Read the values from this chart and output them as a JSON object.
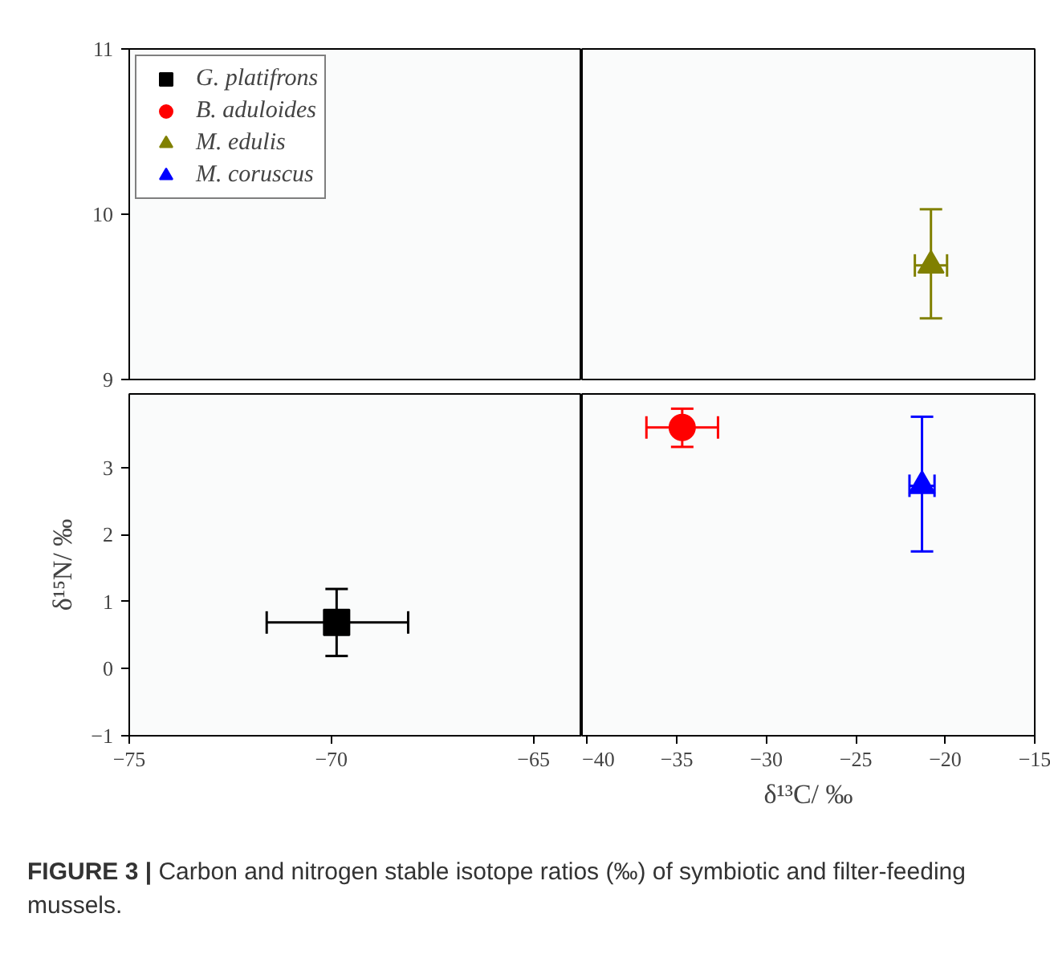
{
  "chart_data": [
    {
      "type": "scatter",
      "xlim": [
        -75,
        -63.8
      ],
      "xticks": [
        -75,
        -70,
        -65
      ],
      "ylim": [
        9,
        11
      ],
      "yticks": [
        9,
        10,
        11
      ],
      "tick_labels": "y",
      "grid": false,
      "legend": "top left",
      "series": [
        {
          "name": "G. platifrons",
          "color": "#000000",
          "marker": "square",
          "x": [
            null
          ],
          "values": [
            null
          ]
        },
        {
          "name": "B. aduloides",
          "color": "#ff0000",
          "marker": "circle",
          "x": [
            null
          ],
          "values": [
            null
          ]
        },
        {
          "name": "M. edulis",
          "color": "#808000",
          "marker": "triangle",
          "x": [
            null
          ],
          "values": [
            null
          ]
        },
        {
          "name": "M. coruscus",
          "color": "#0000ff",
          "marker": "triangle",
          "x": [
            null
          ],
          "values": [
            null
          ]
        }
      ]
    },
    {
      "type": "scatter",
      "xlim": [
        -40.3,
        -15
      ],
      "xticks": [
        -40,
        -35,
        -30,
        -25,
        -20,
        -15
      ],
      "ylim": [
        9,
        11
      ],
      "yticks": [
        9,
        10,
        11
      ],
      "tick_labels": false,
      "grid": false,
      "series": [
        {
          "color": "#808000",
          "marker": "triangle",
          "x": [
            -20.8
          ],
          "values": [
            9.69
          ],
          "errors": [
            [
              9.37,
              10.03
            ]
          ],
          "xerrors": [
            [
              -21.7,
              -19.9
            ]
          ]
        }
      ]
    },
    {
      "type": "scatter",
      "xlim": [
        -75,
        -63.8
      ],
      "xticks": [
        -75,
        -70,
        -65
      ],
      "ylim": [
        -1,
        4.1
      ],
      "yticks": [
        -1,
        0,
        1,
        2,
        3
      ],
      "grid": false,
      "ylabel": "δ¹⁵N/ ‰",
      "series": [
        {
          "color": "#000000",
          "marker": "square",
          "x": [
            -69.87
          ],
          "values": [
            0.69
          ],
          "errors": [
            [
              0.19,
              1.19
            ]
          ],
          "xerrors": [
            [
              -71.6,
              -68.1
            ]
          ]
        }
      ]
    },
    {
      "type": "scatter",
      "xlim": [
        -40.3,
        -15
      ],
      "xticks": [
        -40,
        -35,
        -30,
        -25,
        -20,
        -15
      ],
      "ylim": [
        -1,
        4.1
      ],
      "yticks": [
        -1,
        0,
        1,
        2,
        3
      ],
      "tick_labels": "x",
      "grid": false,
      "xlabel": "δ¹³C/ ‰",
      "annotations": [
        "FIGURE 3 | Carbon and nitrogen stable isotope ratios (‰) of symbiotic and filter-feeding mussels."
      ],
      "series": [
        {
          "color": "#ff0000",
          "marker": "circle",
          "x": [
            -34.7
          ],
          "values": [
            3.6
          ],
          "errors": [
            [
              3.31,
              3.88
            ]
          ],
          "xerrors": [
            [
              -36.7,
              -32.7
            ]
          ]
        },
        {
          "color": "#0000ff",
          "marker": "triangle",
          "x": [
            -21.3
          ],
          "values": [
            2.73
          ],
          "errors": [
            [
              1.75,
              3.76
            ]
          ],
          "xerrors": [
            [
              -22.0,
              -20.6
            ]
          ]
        }
      ]
    }
  ]
}
